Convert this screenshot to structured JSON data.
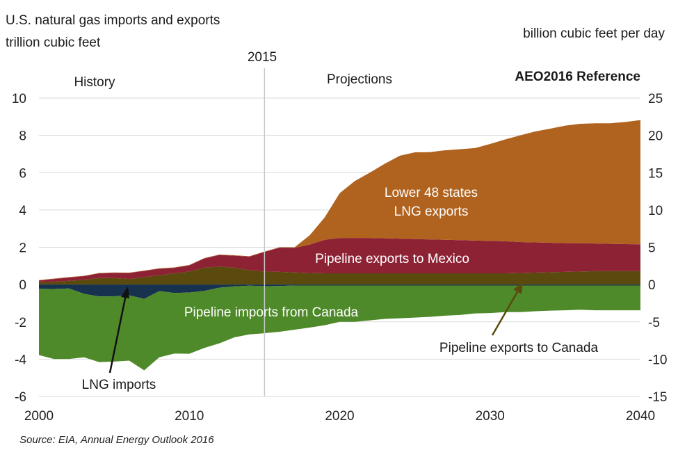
{
  "chart_data": {
    "type": "area",
    "title": "U.S. natural gas imports and exports",
    "left_unit": "trillion cubic feet",
    "right_unit": "billion cubic feet per day",
    "scenario": "AEO2016 Reference",
    "divider_year_label": "2015",
    "history_label": "History",
    "projections_label": "Projections",
    "source": "Source:  EIA, Annual Energy Outlook 2016",
    "left_axis": {
      "min": -6,
      "max": 10,
      "ticks": [
        "-6",
        "-4",
        "-2",
        "0",
        "2",
        "4",
        "6",
        "8",
        "10"
      ]
    },
    "right_axis": {
      "min": -15,
      "max": 25,
      "ticks": [
        "-15",
        "-10",
        "-5",
        "0",
        "5",
        "10",
        "15",
        "20",
        "25"
      ]
    },
    "x_ticks": [
      "2000",
      "2010",
      "2020",
      "2030",
      "2040"
    ],
    "x_range": [
      2000,
      2040
    ],
    "divider_year": 2015,
    "years": [
      2000,
      2001,
      2002,
      2003,
      2004,
      2005,
      2006,
      2007,
      2008,
      2009,
      2010,
      2011,
      2012,
      2013,
      2014,
      2015,
      2016,
      2017,
      2018,
      2019,
      2020,
      2021,
      2022,
      2023,
      2024,
      2025,
      2026,
      2027,
      2028,
      2029,
      2030,
      2031,
      2032,
      2033,
      2034,
      2035,
      2036,
      2037,
      2038,
      2039,
      2040
    ],
    "positive_series": [
      {
        "name": "Pipeline exports to Canada",
        "color": "#5a4a0e",
        "values": [
          0.12,
          0.15,
          0.2,
          0.25,
          0.35,
          0.35,
          0.3,
          0.4,
          0.5,
          0.6,
          0.7,
          0.9,
          0.97,
          0.9,
          0.77,
          0.7,
          0.68,
          0.65,
          0.62,
          0.6,
          0.6,
          0.6,
          0.6,
          0.6,
          0.6,
          0.6,
          0.6,
          0.6,
          0.6,
          0.6,
          0.6,
          0.6,
          0.62,
          0.64,
          0.66,
          0.68,
          0.7,
          0.72,
          0.72,
          0.72,
          0.72
        ]
      },
      {
        "name": "Pipeline exports to Mexico",
        "color": "#8e2235",
        "values": [
          0.1,
          0.15,
          0.18,
          0.2,
          0.25,
          0.28,
          0.32,
          0.33,
          0.35,
          0.3,
          0.33,
          0.5,
          0.62,
          0.65,
          0.73,
          1.05,
          1.3,
          1.32,
          1.52,
          1.8,
          1.9,
          1.9,
          1.9,
          1.88,
          1.86,
          1.84,
          1.82,
          1.8,
          1.78,
          1.76,
          1.74,
          1.72,
          1.66,
          1.62,
          1.58,
          1.54,
          1.52,
          1.48,
          1.46,
          1.45,
          1.44
        ]
      },
      {
        "name": "Lower 48 states LNG exports",
        "color": "#b0631f",
        "values": [
          0.02,
          0.02,
          0.02,
          0.02,
          0.02,
          0.02,
          0.02,
          0.02,
          0.02,
          0.02,
          0.02,
          0.02,
          0.02,
          0.02,
          0.02,
          0.02,
          0.02,
          0.03,
          0.5,
          1.2,
          2.4,
          3.05,
          3.5,
          4.0,
          4.45,
          4.65,
          4.68,
          4.8,
          4.88,
          4.96,
          5.2,
          5.46,
          5.72,
          5.95,
          6.12,
          6.3,
          6.4,
          6.45,
          6.47,
          6.55,
          6.66
        ]
      }
    ],
    "negative_series": [
      {
        "name": "LNG imports",
        "color": "#17324f",
        "values": [
          -0.23,
          -0.24,
          -0.21,
          -0.5,
          -0.64,
          -0.63,
          -0.58,
          -0.77,
          -0.35,
          -0.45,
          -0.43,
          -0.34,
          -0.17,
          -0.1,
          -0.06,
          -0.09,
          -0.08,
          -0.05,
          -0.05,
          -0.05,
          -0.05,
          -0.05,
          -0.05,
          -0.05,
          -0.05,
          -0.05,
          -0.05,
          -0.05,
          -0.05,
          -0.05,
          -0.05,
          -0.05,
          -0.05,
          -0.05,
          -0.05,
          -0.05,
          -0.05,
          -0.05,
          -0.05,
          -0.05,
          -0.05
        ]
      },
      {
        "name": "Pipeline imports from Canada",
        "color": "#4f8a2a",
        "values": [
          -3.55,
          -3.75,
          -3.78,
          -3.4,
          -3.52,
          -3.5,
          -3.5,
          -3.83,
          -3.55,
          -3.25,
          -3.28,
          -3.06,
          -2.98,
          -2.73,
          -2.61,
          -2.52,
          -2.45,
          -2.37,
          -2.26,
          -2.13,
          -1.95,
          -1.95,
          -1.87,
          -1.79,
          -1.76,
          -1.72,
          -1.68,
          -1.62,
          -1.58,
          -1.5,
          -1.48,
          -1.43,
          -1.43,
          -1.38,
          -1.35,
          -1.33,
          -1.3,
          -1.33,
          -1.33,
          -1.33,
          -1.33
        ]
      }
    ],
    "annotations": {
      "lng_exports_line1": "Lower 48 states",
      "lng_exports_line2": "LNG exports",
      "mexico": "Pipeline exports to Mexico",
      "canada_imports": "Pipeline imports from Canada",
      "canada_exports": "Pipeline exports to Canada",
      "lng_imports": "LNG imports"
    }
  }
}
